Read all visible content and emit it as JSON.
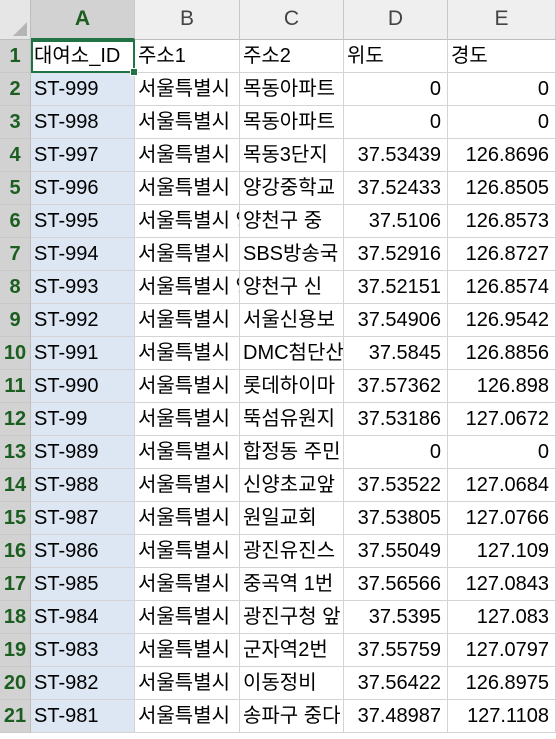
{
  "columns": [
    "A",
    "B",
    "C",
    "D",
    "E"
  ],
  "headers": [
    "대여소_ID",
    "주소1",
    "주소2",
    "위도",
    "경도"
  ],
  "rows": [
    {
      "n": "2",
      "id": "ST-999",
      "a1": "서울특별시",
      "a2": "목동아파트",
      "lat": "0",
      "lng": "0"
    },
    {
      "n": "3",
      "id": "ST-998",
      "a1": "서울특별시",
      "a2": "목동아파트",
      "lat": "0",
      "lng": "0"
    },
    {
      "n": "4",
      "id": "ST-997",
      "a1": "서울특별시",
      "a2": "목동3단지",
      "lat": "37.53439",
      "lng": "126.8696"
    },
    {
      "n": "5",
      "id": "ST-996",
      "a1": "서울특별시",
      "a2": "양강중학교",
      "lat": "37.52433",
      "lng": "126.8505"
    },
    {
      "n": "6",
      "id": "ST-995",
      "a1": "서울특별시 양천구",
      "a2": "양천구 중",
      "lat": "37.5106",
      "lng": "126.8573"
    },
    {
      "n": "7",
      "id": "ST-994",
      "a1": "서울특별시",
      "a2": "SBS방송국",
      "lat": "37.52916",
      "lng": "126.8727"
    },
    {
      "n": "8",
      "id": "ST-993",
      "a1": "서울특별시 양천구",
      "a2": "양천구 신",
      "lat": "37.52151",
      "lng": "126.8574"
    },
    {
      "n": "9",
      "id": "ST-992",
      "a1": "서울특별시",
      "a2": "서울신용보",
      "lat": "37.54906",
      "lng": "126.9542"
    },
    {
      "n": "10",
      "id": "ST-991",
      "a1": "서울특별시",
      "a2": "DMC첨단산",
      "lat": "37.5845",
      "lng": "126.8856"
    },
    {
      "n": "11",
      "id": "ST-990",
      "a1": "서울특별시",
      "a2": "롯데하이마",
      "lat": "37.57362",
      "lng": "126.898"
    },
    {
      "n": "12",
      "id": "ST-99",
      "a1": "서울특별시",
      "a2": "뚝섬유원지",
      "lat": "37.53186",
      "lng": "127.0672"
    },
    {
      "n": "13",
      "id": "ST-989",
      "a1": "서울특별시",
      "a2": "합정동 주민",
      "lat": "0",
      "lng": "0"
    },
    {
      "n": "14",
      "id": "ST-988",
      "a1": "서울특별시",
      "a2": "신양초교앞",
      "lat": "37.53522",
      "lng": "127.0684"
    },
    {
      "n": "15",
      "id": "ST-987",
      "a1": "서울특별시",
      "a2": "원일교회",
      "lat": "37.53805",
      "lng": "127.0766"
    },
    {
      "n": "16",
      "id": "ST-986",
      "a1": "서울특별시",
      "a2": "광진유진스",
      "lat": "37.55049",
      "lng": "127.109"
    },
    {
      "n": "17",
      "id": "ST-985",
      "a1": "서울특별시",
      "a2": "중곡역 1번",
      "lat": "37.56566",
      "lng": "127.0843"
    },
    {
      "n": "18",
      "id": "ST-984",
      "a1": "서울특별시",
      "a2": "광진구청 앞",
      "lat": "37.5395",
      "lng": "127.083"
    },
    {
      "n": "19",
      "id": "ST-983",
      "a1": "서울특별시",
      "a2": "군자역2번",
      "lat": "37.55759",
      "lng": "127.0797"
    },
    {
      "n": "20",
      "id": "ST-982",
      "a1": "서울특별시",
      "a2": "이동정비",
      "lat": "37.56422",
      "lng": "126.8975"
    },
    {
      "n": "21",
      "id": "ST-981",
      "a1": "서울특별시",
      "a2": "송파구 중다",
      "lat": "37.48987",
      "lng": "127.1108"
    }
  ],
  "header_row_number": "1",
  "colors": {
    "accent": "#217346",
    "selected_column": "#dde6f3"
  }
}
